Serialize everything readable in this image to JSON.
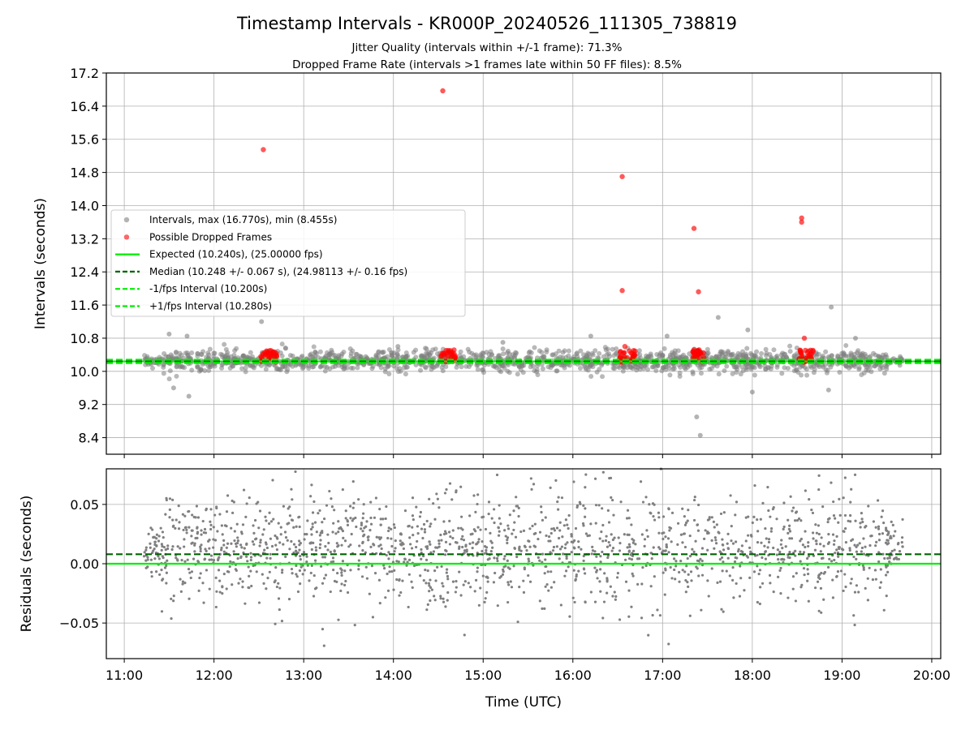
{
  "chart_data": {
    "title": "Timestamp Intervals - KR000P_20240526_111305_738819",
    "subtitle_line1": "Jitter Quality (intervals within +/-1 frame): 71.3%",
    "subtitle_line2": "Dropped Frame Rate (intervals >1 frames late within 50 FF files): 8.5%",
    "xlabel": "Time (UTC)",
    "x_ticks": [
      "11:00",
      "12:00",
      "13:00",
      "14:00",
      "15:00",
      "16:00",
      "17:00",
      "18:00",
      "19:00",
      "20:00"
    ],
    "x_range_hours": [
      10.8,
      20.1
    ],
    "grid": true,
    "legend_placement": "center-left",
    "panels": [
      {
        "type": "scatter",
        "ylabel": "Intervals (seconds)",
        "ylim": [
          8.0,
          17.2
        ],
        "y_ticks": [
          "8.4",
          "9.2",
          "10.0",
          "10.8",
          "11.6",
          "12.4",
          "13.2",
          "14.0",
          "14.8",
          "15.6",
          "16.4",
          "17.2"
        ],
        "series": [
          {
            "name": "Intervals, max (16.770s), min (8.455s)",
            "kind": "scatter",
            "color": "#808080",
            "max": 16.77,
            "min": 8.455,
            "center": 10.25,
            "x_start_hour": 11.22,
            "x_end_hour": 19.68,
            "notable_points": [
              {
                "x": 11.5,
                "y": 10.9
              },
              {
                "x": 11.55,
                "y": 9.6
              },
              {
                "x": 11.72,
                "y": 9.4
              },
              {
                "x": 11.7,
                "y": 10.85
              },
              {
                "x": 12.53,
                "y": 11.2
              },
              {
                "x": 14.05,
                "y": 10.6
              },
              {
                "x": 15.22,
                "y": 10.7
              },
              {
                "x": 16.2,
                "y": 10.85
              },
              {
                "x": 17.05,
                "y": 10.85
              },
              {
                "x": 17.38,
                "y": 8.9
              },
              {
                "x": 17.42,
                "y": 8.455
              },
              {
                "x": 17.62,
                "y": 11.3
              },
              {
                "x": 17.95,
                "y": 11.0
              },
              {
                "x": 18.0,
                "y": 9.5
              },
              {
                "x": 18.88,
                "y": 11.55
              },
              {
                "x": 18.85,
                "y": 9.55
              },
              {
                "x": 19.15,
                "y": 10.8
              }
            ]
          },
          {
            "name": "Possible Dropped Frames",
            "kind": "scatter",
            "color": "#ff0000",
            "points": [
              {
                "x": 12.55,
                "y": 15.35
              },
              {
                "x": 12.62,
                "y": 10.5
              },
              {
                "x": 14.55,
                "y": 16.77
              },
              {
                "x": 16.55,
                "y": 14.7
              },
              {
                "x": 16.55,
                "y": 11.95
              },
              {
                "x": 16.58,
                "y": 10.6
              },
              {
                "x": 17.35,
                "y": 13.45
              },
              {
                "x": 17.4,
                "y": 11.92
              },
              {
                "x": 18.55,
                "y": 13.7
              },
              {
                "x": 18.55,
                "y": 13.6
              },
              {
                "x": 18.58,
                "y": 10.8
              }
            ],
            "clusters": [
              {
                "x0": 12.52,
                "x1": 12.7
              },
              {
                "x0": 14.52,
                "x1": 14.7
              },
              {
                "x0": 16.52,
                "x1": 16.7
              },
              {
                "x0": 17.33,
                "x1": 17.47
              },
              {
                "x0": 18.52,
                "x1": 18.68
              }
            ]
          },
          {
            "name": "Expected (10.240s), (25.00000 fps)",
            "kind": "hline",
            "y": 10.24,
            "color": "#00ee00",
            "dash": "solid"
          },
          {
            "name": "Median (10.248 +/- 0.067 s), (24.98113 +/- 0.16 fps)",
            "kind": "hline",
            "y": 10.248,
            "color": "#006400",
            "dash": "dashed"
          },
          {
            "name": "-1/fps Interval (10.200s)",
            "kind": "hline",
            "y": 10.2,
            "color": "#00ee00",
            "dash": "dashed"
          },
          {
            "name": "+1/fps Interval (10.280s)",
            "kind": "hline",
            "y": 10.28,
            "color": "#00ee00",
            "dash": "dashed"
          }
        ]
      },
      {
        "type": "scatter",
        "ylabel": "Residuals (seconds)",
        "ylim": [
          -0.08,
          0.08
        ],
        "y_ticks": [
          "−0.05",
          "0.00",
          "0.05"
        ],
        "y_tick_values": [
          -0.05,
          0.0,
          0.05
        ],
        "series": [
          {
            "name": "residuals",
            "kind": "scatter",
            "color": "#808080",
            "x_start_hour": 11.22,
            "x_end_hour": 19.68,
            "center": 0.012
          },
          {
            "name": "expected",
            "kind": "hline",
            "y": 0.0,
            "color": "#00ee00",
            "dash": "solid"
          },
          {
            "name": "median",
            "kind": "hline",
            "y": 0.008,
            "color": "#006400",
            "dash": "dashed"
          }
        ]
      }
    ]
  }
}
